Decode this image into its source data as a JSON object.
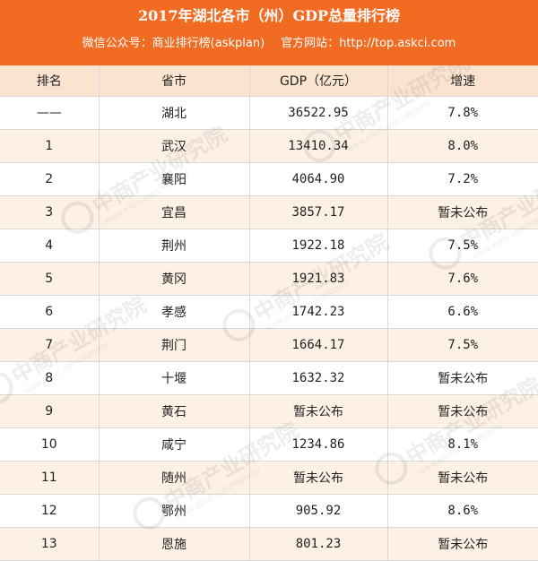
{
  "header": {
    "title": "2017年湖北各市（州）GDP总量排行榜",
    "wechat": "微信公众号：商业排行榜(askplan)",
    "website": "官方网站：http://top.askci.com"
  },
  "table": {
    "columns": [
      "排名",
      "省市",
      "GDP（亿元）",
      "增速"
    ],
    "rows": [
      {
        "rank": "——",
        "city": "湖北",
        "gdp": "36522.95",
        "growth": "7.8%"
      },
      {
        "rank": "1",
        "city": "武汉",
        "gdp": "13410.34",
        "growth": "8.0%"
      },
      {
        "rank": "2",
        "city": "襄阳",
        "gdp": "4064.90",
        "growth": "7.2%"
      },
      {
        "rank": "3",
        "city": "宜昌",
        "gdp": "3857.17",
        "growth": "暂未公布"
      },
      {
        "rank": "4",
        "city": "荆州",
        "gdp": "1922.18",
        "growth": "7.5%"
      },
      {
        "rank": "5",
        "city": "黄冈",
        "gdp": "1921.83",
        "growth": "7.6%"
      },
      {
        "rank": "6",
        "city": "孝感",
        "gdp": "1742.23",
        "growth": "6.6%"
      },
      {
        "rank": "7",
        "city": "荆门",
        "gdp": "1664.17",
        "growth": "7.5%"
      },
      {
        "rank": "8",
        "city": "十堰",
        "gdp": "1632.32",
        "growth": "暂未公布"
      },
      {
        "rank": "9",
        "city": "黄石",
        "gdp": "暂未公布",
        "growth": "暂未公布"
      },
      {
        "rank": "10",
        "city": "咸宁",
        "gdp": "1234.86",
        "growth": "8.1%"
      },
      {
        "rank": "11",
        "city": "随州",
        "gdp": "暂未公布",
        "growth": "暂未公布"
      },
      {
        "rank": "12",
        "city": "鄂州",
        "gdp": "905.92",
        "growth": "8.6%"
      },
      {
        "rank": "13",
        "city": "恩施",
        "gdp": "801.23",
        "growth": "暂未公布"
      }
    ]
  },
  "watermark": {
    "text": "中商产业研究院",
    "subtext": "www.askci.com/reports/"
  },
  "colors": {
    "header_bg": "#f26b22",
    "thead_bg": "#fbe4cf",
    "row_alt": "#fdf0e5"
  }
}
